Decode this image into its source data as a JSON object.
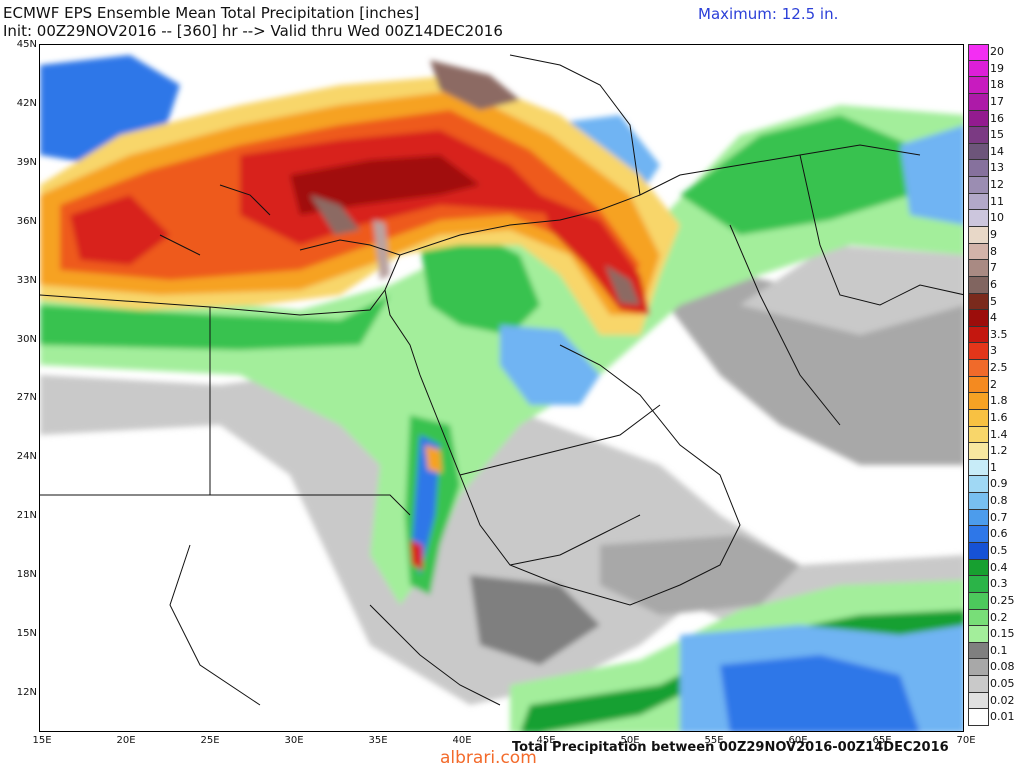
{
  "header": {
    "line1": "ECMWF EPS Ensemble Mean Total Precipitation [inches]",
    "line2": "Init: 00Z29NOV2016 -- [360] hr --> Valid thru Wed 00Z14DEC2016",
    "maximum": "Maximum: 12.5 in."
  },
  "footer": "Total Precipitation between 00Z29NOV2016-00Z14DEC2016",
  "watermark": "albrari.com",
  "map": {
    "region": "Middle East / Eastern Mediterranean",
    "lat_labels": [
      "45N",
      "42N",
      "39N",
      "36N",
      "33N",
      "30N",
      "27N",
      "24N",
      "21N",
      "18N",
      "15N",
      "12N"
    ],
    "lon_labels": [
      "15E",
      "20E",
      "25E",
      "30E",
      "35E",
      "40E",
      "45E",
      "50E",
      "55E",
      "60E",
      "65E",
      "70E"
    ],
    "colors": {
      "land_none": "#ffffff",
      "sea": "#ffffff",
      "trace": "#c9c9c9",
      "light_grey": "#a8a8a8",
      "dark_grey": "#7f7f7f",
      "green_light": "#a3ee9b",
      "green": "#38c24f",
      "green_dark": "#17a030",
      "blue_light": "#70b4f3",
      "blue": "#2e77e8",
      "blue_dark": "#1652d6",
      "yellow": "#f6e59a",
      "orange": "#f6a224",
      "red_orange": "#ee5a1d",
      "red": "#d8241b",
      "dark_red": "#a10d0d",
      "brown": "#8c6a63",
      "mauve": "#b9a3a0"
    }
  },
  "legend": {
    "labels": [
      "20",
      "19",
      "18",
      "17",
      "16",
      "15",
      "14",
      "13",
      "12",
      "11",
      "10",
      "9",
      "8",
      "7",
      "6",
      "5",
      "4",
      "3.5",
      "3",
      "2.5",
      "2",
      "1.8",
      "1.6",
      "1.4",
      "1.2",
      "1",
      "0.9",
      "0.8",
      "0.7",
      "0.6",
      "0.5",
      "0.4",
      "0.3",
      "0.25",
      "0.2",
      "0.15",
      "0.1",
      "0.08",
      "0.05",
      "0.02",
      "0.01"
    ],
    "colors": [
      "#f32ef3",
      "#dd1fd8",
      "#c81bbf",
      "#ad1aa8",
      "#931b8f",
      "#7b3a83",
      "#6d557a",
      "#86719d",
      "#9b8db2",
      "#b2a8c8",
      "#ccc6dd",
      "#e8d8c8",
      "#d3b3a9",
      "#a98a83",
      "#816560",
      "#7a2a1c",
      "#9c0d0b",
      "#c4170f",
      "#e3361a",
      "#f06a2a",
      "#f48a20",
      "#f6a224",
      "#f8c142",
      "#f8d66a",
      "#f8e7a0",
      "#c8ecf8",
      "#a0d8f4",
      "#78bff0",
      "#4c9cec",
      "#2e77e8",
      "#1652d6",
      "#17a030",
      "#2bb448",
      "#4cc85c",
      "#78de78",
      "#a3ee9b",
      "#7f7f7f",
      "#a8a8a8",
      "#c9c9c9",
      "#e1e1e1",
      "#ffffff"
    ]
  }
}
